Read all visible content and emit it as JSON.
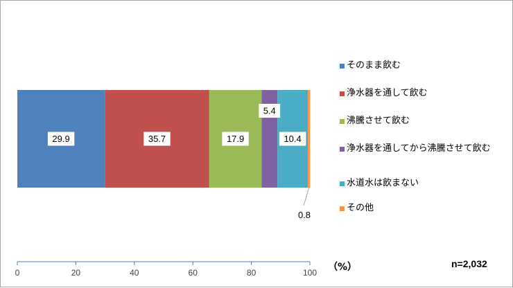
{
  "chart_data": {
    "type": "bar",
    "orientation": "horizontal-stacked",
    "title": "",
    "xlabel": "",
    "ylabel": "",
    "xlim": [
      0,
      100
    ],
    "x_ticks": [
      0,
      20,
      40,
      60,
      80,
      100
    ],
    "unit_label": "（%）",
    "sample_size": "n=2,032",
    "grid": false,
    "legend_position": "right",
    "series": [
      {
        "name": "そのまま飲む",
        "value": 29.9,
        "label": "29.9",
        "color": "#4f81bd"
      },
      {
        "name": "浄水器を通して飲む",
        "value": 35.7,
        "label": "35.7",
        "color": "#c0504d"
      },
      {
        "name": "沸騰させて飲む",
        "value": 17.9,
        "label": "17.9",
        "color": "#9bbb59"
      },
      {
        "name": "浄水器を通してから沸騰させて飲む",
        "value": 5.4,
        "label": "5.4",
        "color": "#8064a2"
      },
      {
        "name": "水道水は飲まない",
        "value": 10.4,
        "label": "10.4",
        "color": "#4bacc6"
      },
      {
        "name": "その他",
        "value": 0.8,
        "label": "0.8",
        "color": "#f79646"
      }
    ]
  }
}
